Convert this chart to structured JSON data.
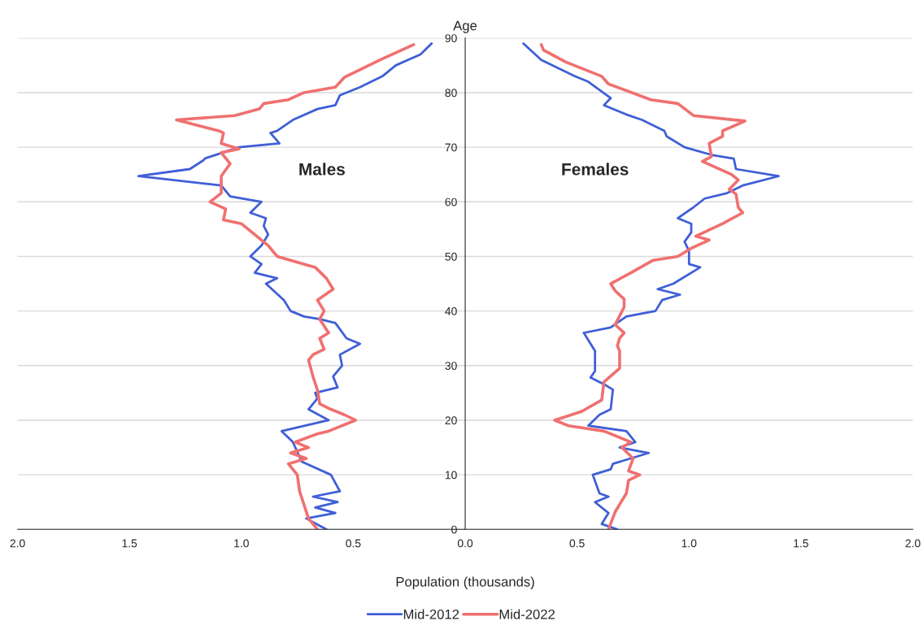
{
  "chart_data": {
    "type": "line",
    "orientation": "horizontal",
    "xlabel": "Population (thousands)",
    "ylabel": "Age",
    "annotations": [
      "Males",
      "Females"
    ],
    "xlim": [
      -2,
      2
    ],
    "xticks": [
      {
        "value": -2,
        "label": "2.0"
      },
      {
        "value": -1.5,
        "label": "1.5"
      },
      {
        "value": -1,
        "label": "1.0"
      },
      {
        "value": -0.5,
        "label": "0.5"
      },
      {
        "value": 0,
        "label": "0.0"
      },
      {
        "value": 0.5,
        "label": "0.5"
      },
      {
        "value": 1,
        "label": "1.0"
      },
      {
        "value": 1.5,
        "label": "1.5"
      },
      {
        "value": 2,
        "label": "2.0"
      }
    ],
    "ylim": [
      0,
      90
    ],
    "yticks": [
      0,
      10,
      20,
      30,
      40,
      50,
      60,
      70,
      80,
      90
    ],
    "grid": "y",
    "legend": "bottom",
    "series": [
      {
        "name": "Mid-2012",
        "color": "#3f5fd6",
        "x": [
          0,
          2,
          3,
          4,
          5,
          6,
          7,
          10,
          12.4,
          16,
          18,
          20,
          22,
          24,
          25,
          26,
          28,
          30,
          32,
          34,
          35,
          37.8,
          38.5,
          39,
          40,
          42,
          45,
          46,
          47,
          48.6,
          50,
          52,
          54,
          55.6,
          57,
          58,
          60,
          61,
          63,
          64.7,
          66,
          67.6,
          68,
          70,
          70.7,
          72.6,
          73,
          75,
          77,
          77.7,
          79.5,
          81,
          83,
          85,
          87,
          89
        ],
        "values": [
          -0.62,
          -0.71,
          -0.58,
          -0.67,
          -0.57,
          -0.68,
          -0.56,
          -0.6,
          -0.73,
          -0.77,
          -0.82,
          -0.61,
          -0.7,
          -0.66,
          -0.67,
          -0.57,
          -0.59,
          -0.55,
          -0.56,
          -0.47,
          -0.53,
          -0.58,
          -0.65,
          -0.72,
          -0.78,
          -0.81,
          -0.89,
          -0.84,
          -0.94,
          -0.91,
          -0.96,
          -0.91,
          -0.88,
          -0.9,
          -0.89,
          -0.96,
          -0.91,
          -1.05,
          -1.09,
          -1.46,
          -1.23,
          -1.17,
          -1.16,
          -1.01,
          -0.83,
          -0.87,
          -0.84,
          -0.77,
          -0.66,
          -0.58,
          -0.56,
          -0.47,
          -0.37,
          -0.31,
          -0.2,
          -0.15
        ]
      },
      {
        "name": "Mid-2022",
        "color": "#f07070",
        "x": [
          0,
          2,
          7,
          10,
          12,
          13,
          14,
          15,
          16,
          17.5,
          18,
          20,
          21,
          22,
          23,
          25.5,
          28,
          31,
          32,
          33,
          35,
          36,
          38.5,
          40,
          42,
          44,
          46,
          48,
          50,
          52,
          56,
          56.7,
          58.7,
          60,
          61.6,
          64.7,
          67,
          69,
          69.7,
          70.7,
          72.6,
          73,
          75,
          75.8,
          77,
          78,
          78.7,
          80,
          81,
          82.8,
          86,
          88.8
        ],
        "values": [
          -0.66,
          -0.7,
          -0.74,
          -0.75,
          -0.79,
          -0.71,
          -0.78,
          -0.7,
          -0.76,
          -0.66,
          -0.61,
          -0.49,
          -0.54,
          -0.6,
          -0.65,
          -0.66,
          -0.68,
          -0.7,
          -0.68,
          -0.63,
          -0.65,
          -0.61,
          -0.65,
          -0.63,
          -0.66,
          -0.59,
          -0.62,
          -0.67,
          -0.84,
          -0.88,
          -1.0,
          -1.08,
          -1.07,
          -1.14,
          -1.09,
          -1.09,
          -1.05,
          -1.09,
          -1.01,
          -1.09,
          -1.08,
          -1.1,
          -1.29,
          -1.03,
          -0.92,
          -0.9,
          -0.79,
          -0.72,
          -0.58,
          -0.54,
          -0.38,
          -0.23
        ]
      },
      {
        "color": "#3f5fd6",
        "x": [
          0,
          1,
          3,
          5,
          6,
          6.6,
          10,
          11,
          12,
          14,
          15,
          16,
          18,
          19,
          21,
          22,
          25.6,
          26.6,
          27.8,
          29,
          32.7,
          36,
          37,
          39,
          40,
          42,
          43,
          44,
          45,
          48,
          48.6,
          51,
          52.7,
          54.4,
          56,
          57,
          59,
          60.6,
          61.6,
          63,
          64.7,
          66,
          67.9,
          68.6,
          70,
          72,
          73,
          75,
          76,
          77.7,
          79,
          82,
          83,
          86,
          89
        ],
        "values": [
          0.68,
          0.61,
          0.64,
          0.58,
          0.64,
          0.6,
          0.57,
          0.65,
          0.66,
          0.82,
          0.69,
          0.76,
          0.72,
          0.55,
          0.6,
          0.65,
          0.66,
          0.62,
          0.56,
          0.58,
          0.58,
          0.53,
          0.65,
          0.72,
          0.85,
          0.88,
          0.96,
          0.86,
          0.93,
          1.05,
          1.0,
          1.0,
          0.98,
          1.01,
          1.01,
          0.95,
          1.02,
          1.07,
          1.17,
          1.24,
          1.4,
          1.21,
          1.2,
          1.1,
          0.98,
          0.9,
          0.89,
          0.79,
          0.72,
          0.62,
          0.65,
          0.55,
          0.49,
          0.34,
          0.26
        ]
      },
      {
        "color": "#f07070",
        "x": [
          0,
          3.2,
          6.6,
          9,
          10,
          10.7,
          13,
          15,
          16,
          18,
          19,
          20,
          21.6,
          23.7,
          27,
          29.5,
          32.7,
          33.6,
          35,
          36,
          37.5,
          40.7,
          42.2,
          43.7,
          45,
          47,
          49.3,
          50,
          51.5,
          53,
          53.7,
          56,
          58,
          59,
          61.4,
          62.3,
          64,
          65,
          67.4,
          68.3,
          70.7,
          72,
          73,
          74.8,
          75.8,
          78,
          78.7,
          81.6,
          83,
          85.6,
          87.8,
          88.8
        ],
        "values": [
          0.64,
          0.67,
          0.72,
          0.73,
          0.78,
          0.73,
          0.75,
          0.7,
          0.74,
          0.62,
          0.46,
          0.4,
          0.52,
          0.61,
          0.62,
          0.69,
          0.69,
          0.68,
          0.69,
          0.71,
          0.67,
          0.71,
          0.71,
          0.67,
          0.65,
          0.74,
          0.84,
          0.95,
          1.01,
          1.09,
          1.03,
          1.15,
          1.24,
          1.22,
          1.21,
          1.18,
          1.22,
          1.19,
          1.06,
          1.1,
          1.09,
          1.15,
          1.15,
          1.25,
          1.02,
          0.95,
          0.83,
          0.64,
          0.61,
          0.45,
          0.35,
          0.34
        ]
      }
    ]
  }
}
